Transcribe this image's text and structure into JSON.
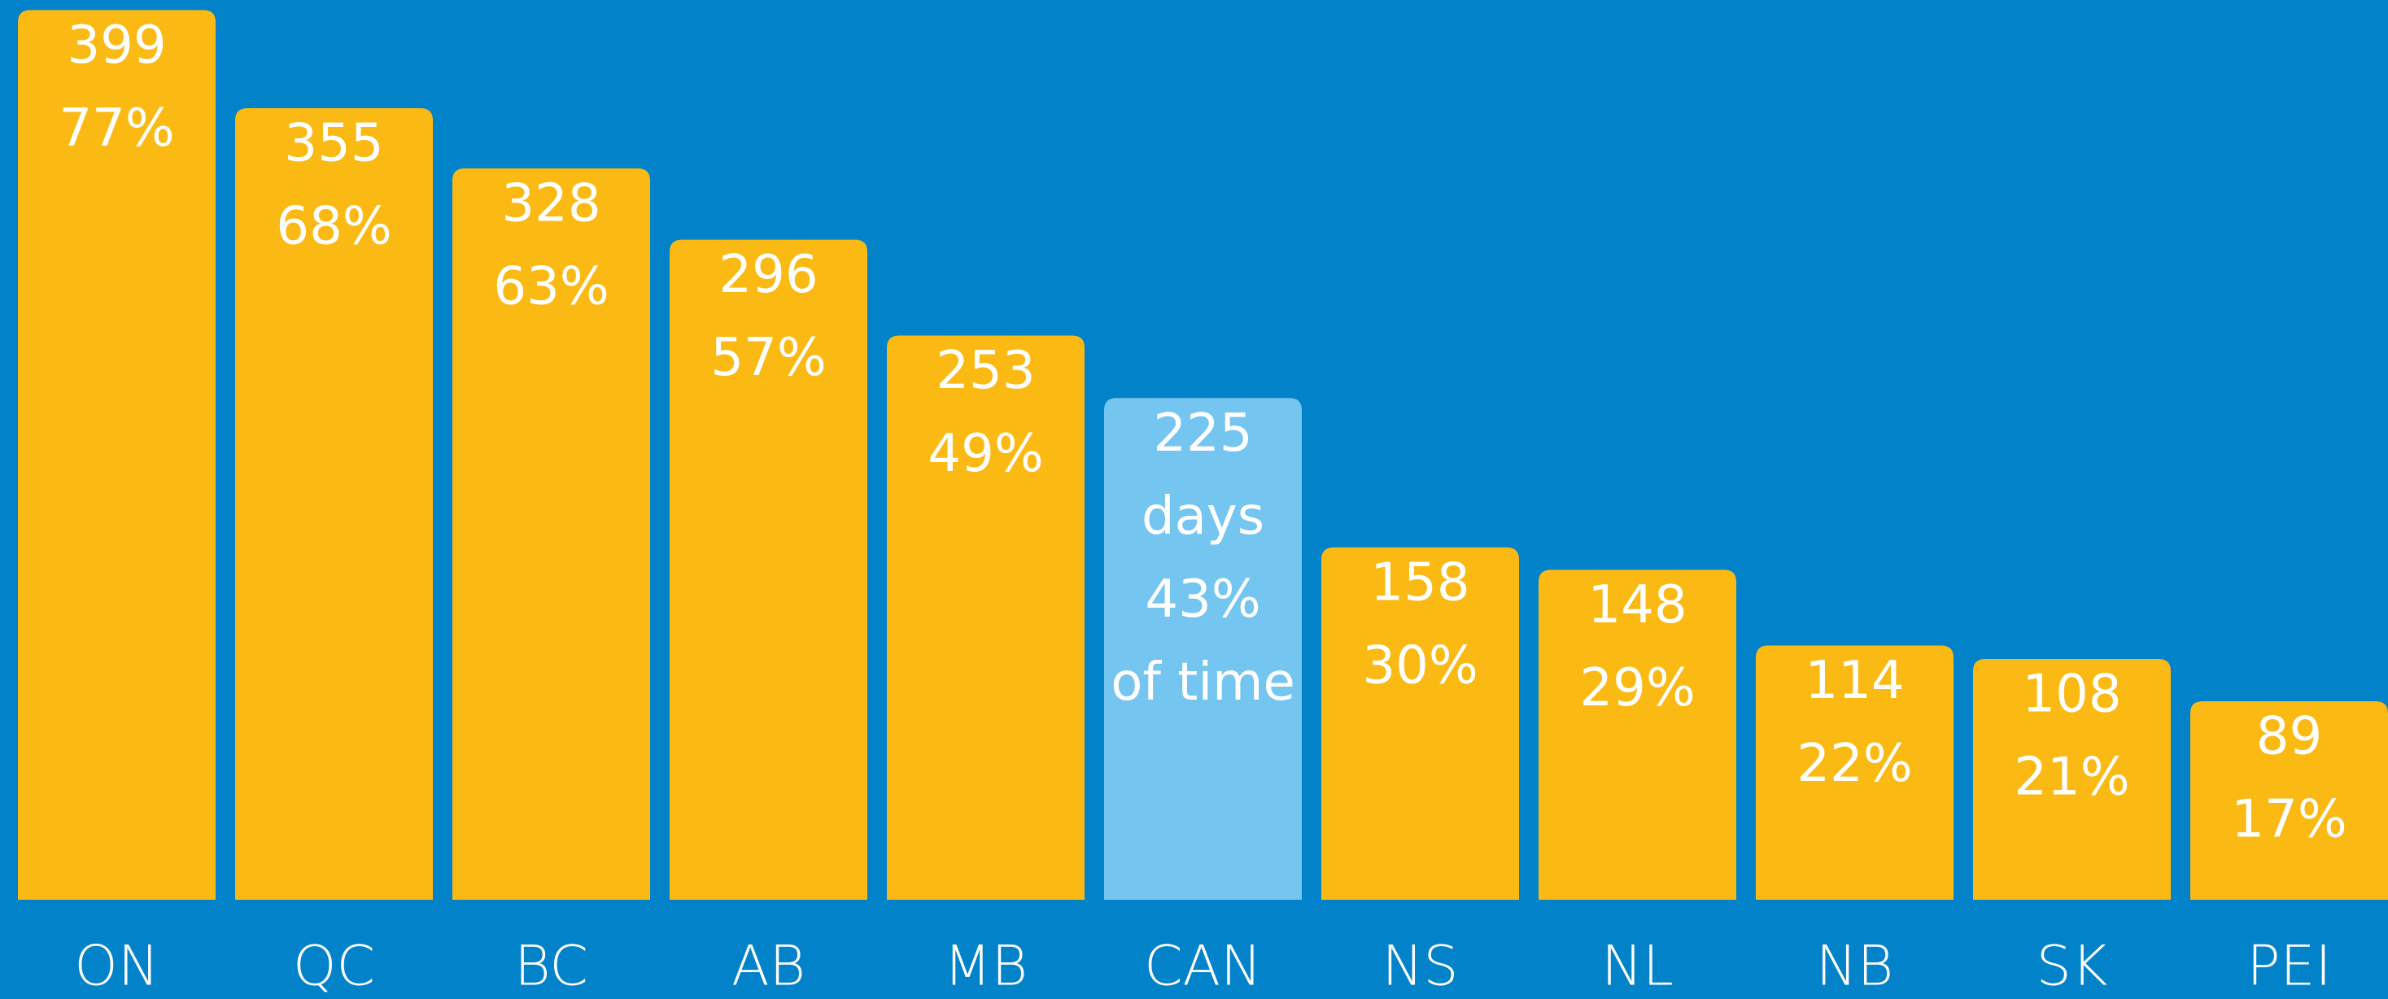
{
  "chart_data": {
    "type": "bar",
    "categories": [
      "ON",
      "QC",
      "BC",
      "AB",
      "MB",
      "CAN",
      "NS",
      "NL",
      "NB",
      "SK",
      "PEI"
    ],
    "values": [
      399,
      355,
      328,
      296,
      253,
      225,
      158,
      148,
      114,
      108,
      89
    ],
    "percent_labels": [
      "77%",
      "68%",
      "63%",
      "57%",
      "49%",
      "43%",
      "30%",
      "29%",
      "22%",
      "21%",
      "17%"
    ],
    "value_notes": [
      null,
      null,
      null,
      null,
      null,
      "days",
      null,
      null,
      null,
      null,
      null
    ],
    "percent_notes": [
      null,
      null,
      null,
      null,
      null,
      "of time",
      null,
      null,
      null,
      null,
      null
    ],
    "colors": [
      "#fbb913",
      "#fbb913",
      "#fbb913",
      "#fbb913",
      "#fbb913",
      "#74c5f0",
      "#fbb913",
      "#fbb913",
      "#fbb913",
      "#fbb913",
      "#fbb913"
    ]
  }
}
